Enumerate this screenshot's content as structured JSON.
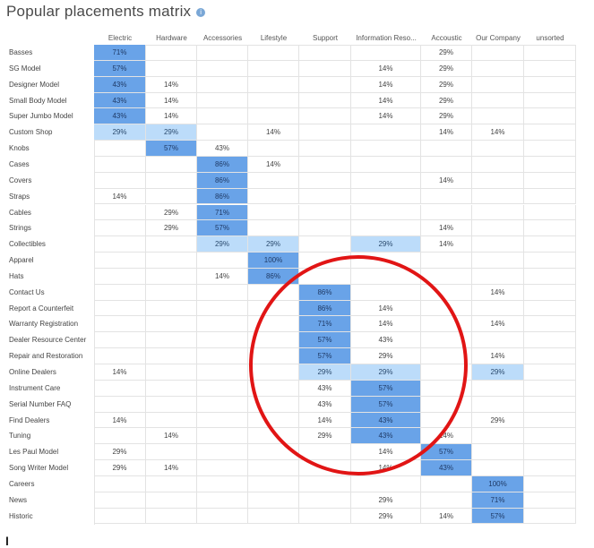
{
  "title": "Popular placements matrix",
  "info_icon": "info-icon",
  "annotation": {
    "shape": "red-ellipse",
    "color": "#e11515"
  },
  "columns": [
    "Electric",
    "Hardware",
    "Accessories",
    "Lifestyle",
    "Support",
    "Information Reso...",
    "Accoustic",
    "Our Company",
    "unsorted"
  ],
  "rows": [
    {
      "label": "Basses",
      "cells": [
        "71%",
        "",
        "",
        "",
        "",
        "",
        "29%",
        "",
        ""
      ]
    },
    {
      "label": "SG Model",
      "cells": [
        "57%",
        "",
        "",
        "",
        "",
        "14%",
        "29%",
        "",
        ""
      ]
    },
    {
      "label": "Designer Model",
      "cells": [
        "43%",
        "14%",
        "",
        "",
        "",
        "14%",
        "29%",
        "",
        ""
      ]
    },
    {
      "label": "Small Body Model",
      "cells": [
        "43%",
        "14%",
        "",
        "",
        "",
        "14%",
        "29%",
        "",
        ""
      ]
    },
    {
      "label": "Super Jumbo Model",
      "cells": [
        "43%",
        "14%",
        "",
        "",
        "",
        "14%",
        "29%",
        "",
        ""
      ]
    },
    {
      "label": "Custom Shop",
      "cells": [
        "29%",
        "29%",
        "",
        "14%",
        "",
        "",
        "14%",
        "14%",
        ""
      ]
    },
    {
      "label": "Knobs",
      "cells": [
        "",
        "57%",
        "43%",
        "",
        "",
        "",
        "",
        "",
        ""
      ]
    },
    {
      "label": "Cases",
      "cells": [
        "",
        "",
        "86%",
        "14%",
        "",
        "",
        "",
        "",
        ""
      ]
    },
    {
      "label": "Covers",
      "cells": [
        "",
        "",
        "86%",
        "",
        "",
        "",
        "14%",
        "",
        ""
      ]
    },
    {
      "label": "Straps",
      "cells": [
        "14%",
        "",
        "86%",
        "",
        "",
        "",
        "",
        "",
        ""
      ]
    },
    {
      "label": "Cables",
      "cells": [
        "",
        "29%",
        "71%",
        "",
        "",
        "",
        "",
        "",
        ""
      ]
    },
    {
      "label": "Strings",
      "cells": [
        "",
        "29%",
        "57%",
        "",
        "",
        "",
        "14%",
        "",
        ""
      ]
    },
    {
      "label": "Collectibles",
      "cells": [
        "",
        "",
        "29%",
        "29%",
        "",
        "29%",
        "14%",
        "",
        ""
      ]
    },
    {
      "label": "Apparel",
      "cells": [
        "",
        "",
        "",
        "100%",
        "",
        "",
        "",
        "",
        ""
      ]
    },
    {
      "label": "Hats",
      "cells": [
        "",
        "",
        "14%",
        "86%",
        "",
        "",
        "",
        "",
        ""
      ]
    },
    {
      "label": "Contact Us",
      "cells": [
        "",
        "",
        "",
        "",
        "86%",
        "",
        "",
        "14%",
        ""
      ]
    },
    {
      "label": "Report a Counterfeit",
      "cells": [
        "",
        "",
        "",
        "",
        "86%",
        "14%",
        "",
        "",
        ""
      ]
    },
    {
      "label": "Warranty Registration",
      "cells": [
        "",
        "",
        "",
        "",
        "71%",
        "14%",
        "",
        "14%",
        ""
      ]
    },
    {
      "label": "Dealer Resource Center",
      "cells": [
        "",
        "",
        "",
        "",
        "57%",
        "43%",
        "",
        "",
        ""
      ]
    },
    {
      "label": "Repair and Restoration",
      "cells": [
        "",
        "",
        "",
        "",
        "57%",
        "29%",
        "",
        "14%",
        ""
      ]
    },
    {
      "label": "Online Dealers",
      "cells": [
        "14%",
        "",
        "",
        "",
        "29%",
        "29%",
        "",
        "29%",
        ""
      ]
    },
    {
      "label": "Instrument Care",
      "cells": [
        "",
        "",
        "",
        "",
        "43%",
        "57%",
        "",
        "",
        ""
      ]
    },
    {
      "label": "Serial Number FAQ",
      "cells": [
        "",
        "",
        "",
        "",
        "43%",
        "57%",
        "",
        "",
        ""
      ]
    },
    {
      "label": "Find Dealers",
      "cells": [
        "14%",
        "",
        "",
        "",
        "14%",
        "43%",
        "",
        "29%",
        ""
      ]
    },
    {
      "label": "Tuning",
      "cells": [
        "",
        "14%",
        "",
        "",
        "29%",
        "43%",
        "14%",
        "",
        ""
      ]
    },
    {
      "label": "Les Paul Model",
      "cells": [
        "29%",
        "",
        "",
        "",
        "",
        "14%",
        "57%",
        "",
        ""
      ]
    },
    {
      "label": "Song Writer Model",
      "cells": [
        "29%",
        "14%",
        "",
        "",
        "",
        "14%",
        "43%",
        "",
        ""
      ]
    },
    {
      "label": "Careers",
      "cells": [
        "",
        "",
        "",
        "",
        "",
        "",
        "",
        "100%",
        ""
      ]
    },
    {
      "label": "News",
      "cells": [
        "",
        "",
        "",
        "",
        "",
        "29%",
        "",
        "71%",
        ""
      ]
    },
    {
      "label": "Historic",
      "cells": [
        "",
        "",
        "",
        "",
        "",
        "29%",
        "14%",
        "57%",
        ""
      ]
    }
  ],
  "highlight_dark": [
    [
      0,
      0
    ],
    [
      1,
      0
    ],
    [
      2,
      0
    ],
    [
      3,
      0
    ],
    [
      4,
      0
    ],
    [
      6,
      1
    ],
    [
      7,
      2
    ],
    [
      8,
      2
    ],
    [
      9,
      2
    ],
    [
      10,
      2
    ],
    [
      11,
      2
    ],
    [
      13,
      3
    ],
    [
      14,
      3
    ],
    [
      15,
      4
    ],
    [
      16,
      4
    ],
    [
      17,
      4
    ],
    [
      18,
      4
    ],
    [
      19,
      4
    ],
    [
      21,
      5
    ],
    [
      22,
      5
    ],
    [
      23,
      5
    ],
    [
      24,
      5
    ],
    [
      25,
      6
    ],
    [
      26,
      6
    ],
    [
      27,
      7
    ],
    [
      28,
      7
    ],
    [
      29,
      7
    ]
  ],
  "highlight_light": [
    [
      5,
      0
    ],
    [
      5,
      1
    ],
    [
      12,
      2
    ],
    [
      12,
      3
    ],
    [
      12,
      5
    ],
    [
      20,
      4
    ],
    [
      20,
      5
    ],
    [
      20,
      7
    ]
  ],
  "colors": {
    "dark": "#69a3e8",
    "light": "#bcdcfa",
    "circle": "#e11515"
  },
  "footer_text": "I"
}
